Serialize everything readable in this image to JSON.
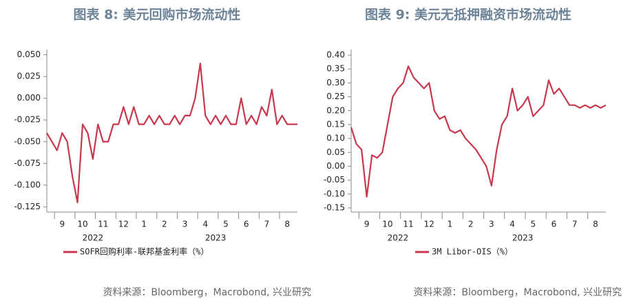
{
  "chart_data": [
    {
      "type": "line",
      "title": "图表 8: 美元回购市场流动性",
      "categories": [
        null,
        null,
        null,
        "9",
        null,
        null,
        null,
        "10",
        null,
        null,
        null,
        "11",
        null,
        null,
        null,
        "12",
        null,
        null,
        null,
        "1",
        null,
        null,
        null,
        "2",
        null,
        null,
        null,
        "3",
        null,
        null,
        null,
        "4",
        null,
        null,
        null,
        "5",
        null,
        null,
        null,
        "6",
        null,
        null,
        null,
        "7",
        null,
        null,
        null,
        "8",
        null,
        null
      ],
      "years": [
        "2022",
        "2023"
      ],
      "series": [
        {
          "name": "SOFR回购利率-联邦基金利率（%）",
          "color": "#c8374b",
          "values": [
            -0.04,
            -0.05,
            -0.06,
            -0.04,
            -0.05,
            -0.09,
            -0.12,
            -0.03,
            -0.04,
            -0.07,
            -0.03,
            -0.05,
            -0.05,
            -0.03,
            -0.03,
            -0.01,
            -0.03,
            -0.01,
            -0.03,
            -0.03,
            -0.02,
            -0.03,
            -0.02,
            -0.03,
            -0.03,
            -0.02,
            -0.03,
            -0.02,
            -0.02,
            0.0,
            0.04,
            -0.02,
            -0.03,
            -0.02,
            -0.03,
            -0.02,
            -0.03,
            -0.03,
            0.0,
            -0.03,
            -0.02,
            -0.03,
            -0.01,
            -0.02,
            0.01,
            -0.03,
            -0.02,
            -0.03,
            -0.03,
            -0.03
          ]
        }
      ],
      "ylim": [
        -0.131,
        0.056
      ],
      "yticks": [
        {
          "value": 0.05,
          "label": "0.050"
        },
        {
          "value": 0.025,
          "label": "0.025"
        },
        {
          "value": 0,
          "label": "0.000"
        },
        {
          "value": -0.025,
          "label": "-0.025"
        },
        {
          "value": -0.05,
          "label": "-0.050"
        },
        {
          "value": -0.075,
          "label": "-0.075"
        },
        {
          "value": -0.1,
          "label": "-0.100"
        },
        {
          "value": -0.125,
          "label": "-0.125"
        }
      ],
      "grid": false,
      "source": "资料来源：Bloomberg，Macrobond, 兴业研究"
    },
    {
      "type": "line",
      "title": "图表 9: 美元无抵押融资市场流动性",
      "categories": [
        null,
        null,
        null,
        "9",
        null,
        null,
        null,
        "10",
        null,
        null,
        null,
        "11",
        null,
        null,
        null,
        "12",
        null,
        null,
        null,
        "1",
        null,
        null,
        null,
        "2",
        null,
        null,
        null,
        "3",
        null,
        null,
        null,
        "4",
        null,
        null,
        null,
        "5",
        null,
        null,
        null,
        "6",
        null,
        null,
        null,
        "7",
        null,
        null,
        null,
        "8",
        null,
        null
      ],
      "years": [
        "2022",
        "2023"
      ],
      "series": [
        {
          "name": "3M Libor-OIS（%）",
          "color": "#c8374b",
          "values": [
            0.14,
            0.08,
            0.06,
            -0.11,
            0.04,
            0.03,
            0.05,
            0.15,
            0.25,
            0.28,
            0.3,
            0.36,
            0.32,
            0.3,
            0.28,
            0.3,
            0.2,
            0.17,
            0.18,
            0.13,
            0.12,
            0.13,
            0.1,
            0.08,
            0.06,
            0.03,
            0.0,
            -0.07,
            0.06,
            0.15,
            0.18,
            0.28,
            0.2,
            0.22,
            0.25,
            0.18,
            0.2,
            0.22,
            0.31,
            0.26,
            0.28,
            0.25,
            0.22,
            0.22,
            0.21,
            0.22,
            0.21,
            0.22,
            0.21,
            0.22
          ]
        }
      ],
      "ylim": [
        -0.165,
        0.42
      ],
      "yticks": [
        {
          "value": 0.4,
          "label": "0.40"
        },
        {
          "value": 0.35,
          "label": "0.35"
        },
        {
          "value": 0.3,
          "label": "0.30"
        },
        {
          "value": 0.25,
          "label": "0.25"
        },
        {
          "value": 0.2,
          "label": "0.20"
        },
        {
          "value": 0.15,
          "label": "0.15"
        },
        {
          "value": 0.1,
          "label": "0.10"
        },
        {
          "value": 0.05,
          "label": "0.05"
        },
        {
          "value": 0,
          "label": "0.00"
        },
        {
          "value": -0.05,
          "label": "-0.05"
        },
        {
          "value": -0.1,
          "label": "-0.10"
        },
        {
          "value": -0.15,
          "label": "-0.15"
        }
      ],
      "grid": false,
      "source": "资料来源：Bloomberg，Macrobond, 兴业研究"
    }
  ]
}
